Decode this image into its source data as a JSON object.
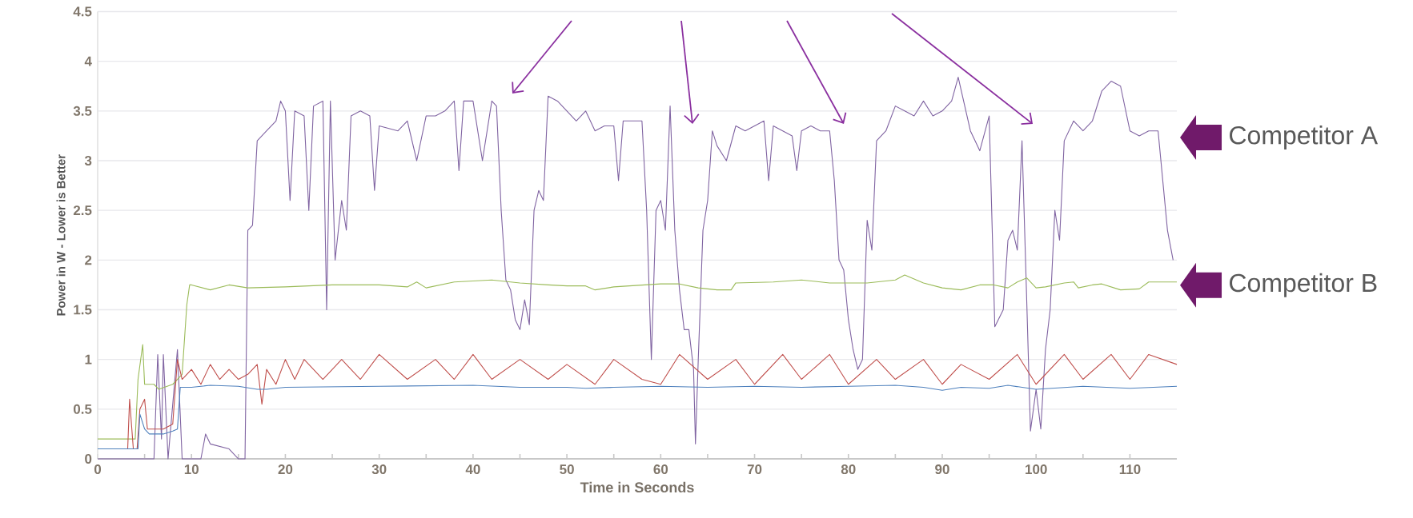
{
  "chart_data": {
    "type": "line",
    "xlabel": "Time in Seconds",
    "ylabel": "Power in W - Lower is Better",
    "xlim": [
      0,
      115
    ],
    "ylim": [
      0,
      4.5
    ],
    "xticks": [
      0,
      {
        "value": 5,
        "label": null
      },
      10,
      {
        "value": 15,
        "label": null
      },
      20,
      {
        "value": 25,
        "label": null
      },
      30,
      {
        "value": 35,
        "label": null
      },
      40,
      {
        "value": 45,
        "label": null
      },
      50,
      {
        "value": 55,
        "label": null
      },
      60,
      {
        "value": 65,
        "label": null
      },
      70,
      {
        "value": 75,
        "label": null
      },
      80,
      {
        "value": 85,
        "label": null
      },
      90,
      {
        "value": 95,
        "label": null
      },
      100,
      {
        "value": 105,
        "label": null
      },
      110
    ],
    "yticks": [
      0,
      0.5,
      1,
      1.5,
      2,
      2.5,
      3,
      3.5,
      4,
      4.5
    ],
    "grid": "y",
    "legend": false,
    "series": [
      {
        "name": "Competitor A",
        "color": "#8064a2",
        "x": [
          0,
          3,
          6,
          6.4,
          6.8,
          7,
          7.5,
          8.5,
          9,
          11,
          11.5,
          12,
          14,
          15,
          15.7,
          16,
          16.5,
          17,
          18,
          19,
          19.5,
          20,
          20.5,
          21,
          22,
          22.5,
          23,
          24,
          24.4,
          24.8,
          25.3,
          26,
          26.5,
          27,
          28,
          29,
          29.5,
          30,
          32,
          33,
          34,
          35,
          36,
          37,
          38,
          38.5,
          39,
          40,
          41,
          42,
          42.5,
          43,
          43.5,
          44,
          44.5,
          45,
          45.5,
          46,
          46.5,
          47,
          47.5,
          48,
          49,
          50,
          51,
          52,
          53,
          54,
          55,
          55.5,
          56,
          57,
          58,
          58.5,
          59,
          59.5,
          60,
          60.5,
          61,
          61.5,
          62,
          62.5,
          63,
          63.5,
          63.7,
          64,
          64.5,
          65,
          65.5,
          66,
          67,
          68,
          69,
          70,
          71,
          71.5,
          72,
          73,
          74,
          74.5,
          75,
          76,
          77,
          78,
          78.5,
          79,
          79.5,
          80,
          80.5,
          81,
          81.5,
          82,
          82.5,
          83,
          84,
          85,
          86,
          87,
          88,
          89,
          90,
          91,
          91.7,
          93,
          94,
          95,
          95.6,
          96.5,
          97,
          97.5,
          98,
          98.5,
          99,
          99.4,
          100,
          100.5,
          101,
          101.5,
          102,
          102.5,
          103,
          104,
          105,
          106,
          107,
          108,
          109,
          110,
          111,
          112,
          113,
          114,
          114.6
        ],
        "values": [
          0,
          0,
          0,
          1.05,
          0.2,
          1.05,
          0,
          1.1,
          0,
          0,
          0.25,
          0.15,
          0.1,
          0,
          0,
          2.3,
          2.35,
          3.2,
          3.3,
          3.4,
          3.6,
          3.5,
          2.6,
          3.5,
          3.45,
          2.5,
          3.55,
          3.6,
          1.5,
          3.6,
          2,
          2.6,
          2.3,
          3.45,
          3.5,
          3.45,
          2.7,
          3.35,
          3.3,
          3.4,
          3,
          3.45,
          3.45,
          3.5,
          3.6,
          2.9,
          3.6,
          3.6,
          3,
          3.6,
          3.55,
          2.5,
          1.8,
          1.7,
          1.4,
          1.3,
          1.6,
          1.35,
          2.5,
          2.7,
          2.6,
          3.65,
          3.6,
          3.5,
          3.4,
          3.5,
          3.3,
          3.35,
          3.35,
          2.8,
          3.4,
          3.4,
          3.4,
          2.5,
          1,
          2.5,
          2.6,
          2.3,
          3.55,
          2.3,
          1.7,
          1.3,
          1.3,
          0.9,
          0.15,
          1,
          2.3,
          2.6,
          3.3,
          3.15,
          3,
          3.35,
          3.3,
          3.35,
          3.4,
          2.8,
          3.35,
          3.3,
          3.25,
          2.9,
          3.3,
          3.35,
          3.3,
          3.3,
          2.8,
          2,
          1.9,
          1.4,
          1.1,
          0.9,
          1,
          2.4,
          2.1,
          3.2,
          3.3,
          3.55,
          3.5,
          3.45,
          3.6,
          3.45,
          3.5,
          3.6,
          3.84,
          3.3,
          3.1,
          3.45,
          1.33,
          1.5,
          2.2,
          2.3,
          2.1,
          3.2,
          1.6,
          0.28,
          0.7,
          0.3,
          1.1,
          1.5,
          2.5,
          2.2,
          3.2,
          3.4,
          3.3,
          3.4,
          3.7,
          3.8,
          3.75,
          3.3,
          3.25,
          3.3,
          3.3,
          2.3,
          2
        ]
      },
      {
        "name": "Competitor B",
        "color": "#9bbb59",
        "x": [
          0,
          4,
          4.3,
          4.8,
          5,
          6,
          6.5,
          8,
          9,
          9.5,
          9.8,
          10,
          12,
          14,
          16,
          20,
          25,
          30,
          33,
          34,
          35,
          38,
          42,
          45,
          48,
          50,
          52,
          53,
          55,
          60,
          62,
          64,
          66,
          67.5,
          68,
          72,
          75,
          78,
          82,
          85,
          86,
          88,
          90,
          92,
          94,
          95.5,
          97,
          98,
          99,
          100,
          101,
          103,
          104,
          104.5,
          106,
          107,
          109,
          111,
          112,
          115
        ],
        "values": [
          0.2,
          0.2,
          0.8,
          1.15,
          0.75,
          0.75,
          0.7,
          0.75,
          0.85,
          1.55,
          1.75,
          1.75,
          1.7,
          1.75,
          1.72,
          1.73,
          1.75,
          1.75,
          1.73,
          1.78,
          1.72,
          1.78,
          1.8,
          1.77,
          1.75,
          1.74,
          1.74,
          1.7,
          1.73,
          1.76,
          1.76,
          1.72,
          1.7,
          1.7,
          1.77,
          1.78,
          1.8,
          1.77,
          1.77,
          1.8,
          1.85,
          1.77,
          1.72,
          1.7,
          1.75,
          1.75,
          1.72,
          1.78,
          1.82,
          1.72,
          1.73,
          1.77,
          1.78,
          1.72,
          1.75,
          1.76,
          1.7,
          1.71,
          1.78,
          1.78
        ]
      },
      {
        "color": "#c0504d",
        "x": [
          3.2,
          3.4,
          3.8,
          4.2,
          4.5,
          5,
          5.3,
          7,
          8,
          8.5,
          9,
          10,
          11,
          12,
          13,
          14,
          15,
          16,
          17,
          17.5,
          18,
          19,
          20,
          21,
          22,
          24,
          26,
          28,
          30,
          33,
          36,
          38,
          40,
          42,
          45,
          48,
          50,
          53,
          55,
          58,
          60,
          62,
          65,
          68,
          70,
          73,
          75,
          78,
          80,
          83,
          85,
          88,
          90,
          92,
          95,
          98,
          100,
          103,
          105,
          108,
          110,
          112,
          115
        ],
        "values": [
          0.1,
          0.6,
          0.1,
          0.1,
          0.5,
          0.6,
          0.3,
          0.3,
          0.35,
          1,
          0.8,
          0.9,
          0.75,
          0.95,
          0.8,
          0.9,
          0.8,
          0.85,
          0.95,
          0.55,
          0.9,
          0.75,
          1,
          0.8,
          1,
          0.8,
          1,
          0.8,
          1.05,
          0.8,
          1,
          0.8,
          1.05,
          0.8,
          1,
          0.8,
          0.95,
          0.75,
          1,
          0.8,
          0.75,
          1.05,
          0.8,
          1,
          0.75,
          1.05,
          0.8,
          1.05,
          0.75,
          1,
          0.8,
          1,
          0.75,
          0.95,
          0.8,
          1.05,
          0.75,
          1.05,
          0.8,
          1.05,
          0.8,
          1.05,
          0.95
        ]
      },
      {
        "color": "#4f81bd",
        "x": [
          0,
          4.3,
          4.5,
          5,
          5.5,
          7,
          8,
          8.5,
          8.8,
          10,
          12,
          15,
          17,
          18,
          20,
          30,
          40,
          45,
          50,
          52,
          55,
          60,
          65,
          70,
          75,
          80,
          85,
          88,
          90,
          92,
          95,
          97,
          100,
          105,
          110,
          115
        ],
        "values": [
          0.1,
          0.1,
          0.45,
          0.3,
          0.25,
          0.25,
          0.28,
          0.3,
          0.72,
          0.72,
          0.74,
          0.73,
          0.7,
          0.7,
          0.72,
          0.73,
          0.74,
          0.72,
          0.72,
          0.71,
          0.72,
          0.73,
          0.72,
          0.73,
          0.72,
          0.73,
          0.74,
          0.72,
          0.69,
          0.72,
          0.71,
          0.74,
          0.7,
          0.73,
          0.71,
          0.73
        ]
      }
    ]
  }
}
